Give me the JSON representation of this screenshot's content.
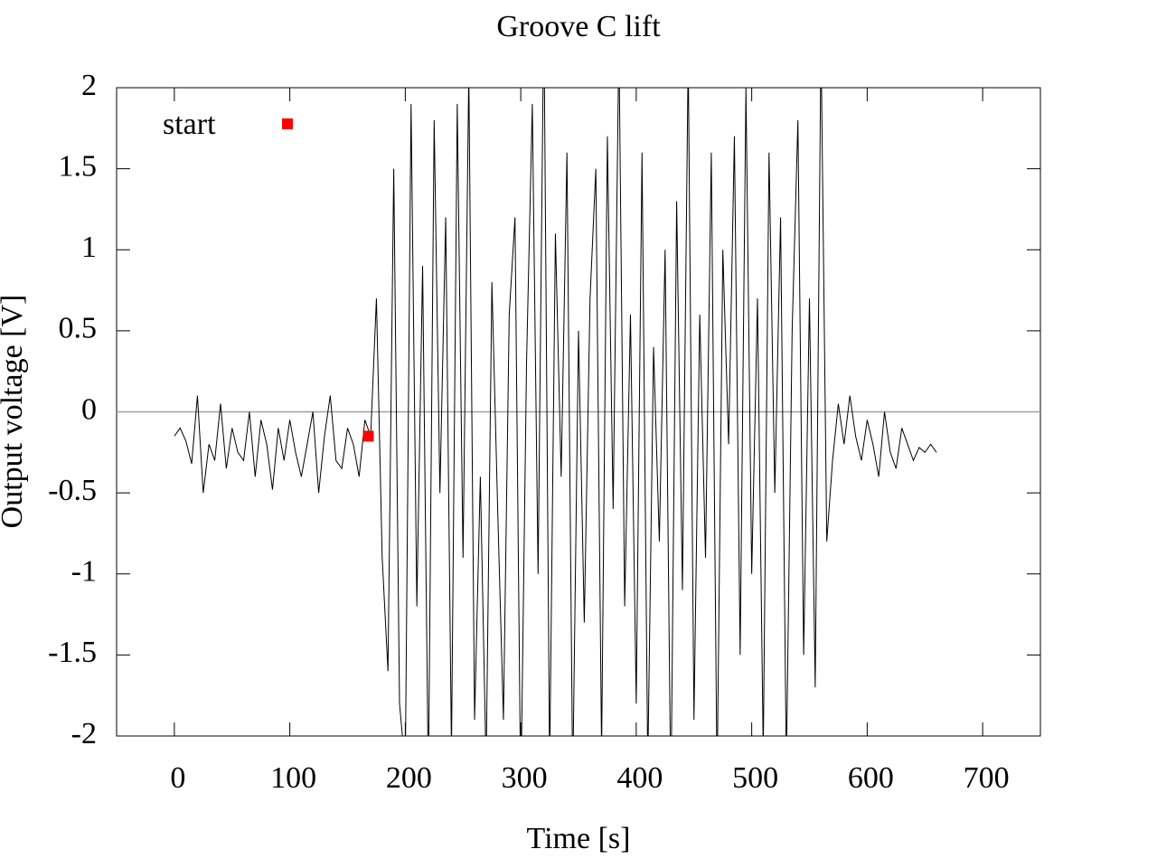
{
  "chart_data": {
    "type": "line",
    "title": "Groove C lift",
    "xlabel": "Time [s]",
    "ylabel": "Output voltage [V]",
    "xlim": [
      -50,
      750
    ],
    "xticks": [
      0,
      100,
      200,
      300,
      400,
      500,
      600,
      700
    ],
    "ylim": [
      -2,
      2
    ],
    "yticks": [
      -2,
      -1.5,
      -1,
      -0.5,
      0,
      0.5,
      1,
      1.5,
      2
    ],
    "zeroaxis": true,
    "legend": "top-left",
    "series": [
      {
        "color": "#000000",
        "style": "line",
        "x": [
          0,
          5,
          10,
          15,
          20,
          25,
          30,
          35,
          40,
          45,
          50,
          55,
          60,
          65,
          70,
          75,
          80,
          85,
          90,
          95,
          100,
          105,
          110,
          115,
          120,
          125,
          130,
          135,
          140,
          145,
          150,
          155,
          160,
          165,
          170,
          175,
          180,
          185,
          190,
          195,
          200,
          205,
          210,
          215,
          220,
          225,
          230,
          235,
          240,
          245,
          250,
          255,
          260,
          265,
          270,
          275,
          280,
          285,
          290,
          295,
          300,
          305,
          310,
          315,
          320,
          325,
          330,
          335,
          340,
          345,
          350,
          355,
          360,
          365,
          370,
          375,
          380,
          385,
          390,
          395,
          400,
          405,
          410,
          415,
          420,
          425,
          430,
          435,
          440,
          445,
          450,
          455,
          460,
          465,
          470,
          475,
          480,
          485,
          490,
          495,
          500,
          505,
          510,
          515,
          520,
          525,
          530,
          535,
          540,
          545,
          550,
          555,
          560,
          565,
          570,
          575,
          580,
          585,
          590,
          595,
          600,
          605,
          610,
          615,
          620,
          625,
          630,
          635,
          640,
          645,
          650,
          655,
          660
        ],
        "values": [
          -0.15,
          -0.1,
          -0.18,
          -0.32,
          0.1,
          -0.5,
          -0.2,
          -0.3,
          0.05,
          -0.35,
          -0.1,
          -0.25,
          -0.3,
          0.0,
          -0.4,
          -0.05,
          -0.2,
          -0.48,
          -0.1,
          -0.3,
          -0.05,
          -0.25,
          -0.4,
          -0.2,
          0.0,
          -0.5,
          -0.15,
          0.1,
          -0.3,
          -0.35,
          -0.1,
          -0.2,
          -0.4,
          -0.05,
          -0.15,
          0.7,
          -0.9,
          -1.6,
          1.5,
          -1.8,
          -2.2,
          1.9,
          -1.2,
          0.9,
          -2.3,
          1.8,
          -0.5,
          1.2,
          -2.1,
          1.9,
          -0.9,
          2.1,
          -1.9,
          -0.4,
          -2.2,
          0.8,
          -0.6,
          -1.9,
          0.6,
          1.2,
          -2.4,
          0.3,
          1.9,
          -1.0,
          2.5,
          -2.2,
          1.1,
          -0.4,
          1.6,
          -2.3,
          0.5,
          -1.3,
          0.7,
          1.5,
          -2.1,
          1.7,
          -0.6,
          2.3,
          -1.2,
          0.6,
          -1.8,
          1.6,
          -2.2,
          0.4,
          -0.8,
          1.0,
          -2.4,
          1.3,
          -1.1,
          2.2,
          -1.9,
          0.6,
          -0.9,
          1.6,
          -2.3,
          1.0,
          -0.2,
          1.7,
          -1.5,
          2.0,
          -1.0,
          0.7,
          -2.1,
          1.6,
          -0.5,
          1.2,
          -2.2,
          0.5,
          1.8,
          -1.5,
          0.7,
          -1.7,
          2.3,
          -0.8,
          -0.3,
          0.05,
          -0.2,
          0.1,
          -0.15,
          -0.3,
          -0.05,
          -0.2,
          -0.4,
          0.0,
          -0.25,
          -0.35,
          -0.1,
          -0.2,
          -0.3,
          -0.22,
          -0.25,
          -0.2,
          -0.25
        ]
      },
      {
        "name": "start",
        "color": "#ff0000",
        "style": "points",
        "x": [
          168
        ],
        "values": [
          -0.15
        ]
      }
    ]
  }
}
